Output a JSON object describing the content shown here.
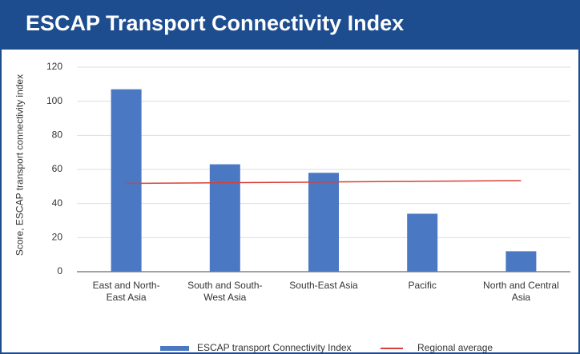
{
  "chart_data": {
    "type": "bar",
    "title": "ESCAP Transport Connectivity Index",
    "y_label": "Score, ESCAP transport connectivity index",
    "categories": [
      "East  and North-East Asia",
      "South and South-West Asia",
      "South-East Asia",
      "Pacific",
      "North and Central Asia"
    ],
    "series": [
      {
        "name": "ESCAP transport Connectivity Index",
        "type": "bar",
        "color": "#4a78c2",
        "values": [
          107,
          63,
          58,
          34,
          12
        ]
      },
      {
        "name": "Regional average",
        "type": "line",
        "color": "#d9413a",
        "values": [
          51.8,
          52.2,
          52.6,
          53.0,
          53.4
        ]
      }
    ],
    "ylim": [
      0,
      120
    ],
    "yticks": [
      0,
      20,
      40,
      60,
      80,
      100,
      120
    ],
    "grid": true,
    "legend": "bottom"
  }
}
